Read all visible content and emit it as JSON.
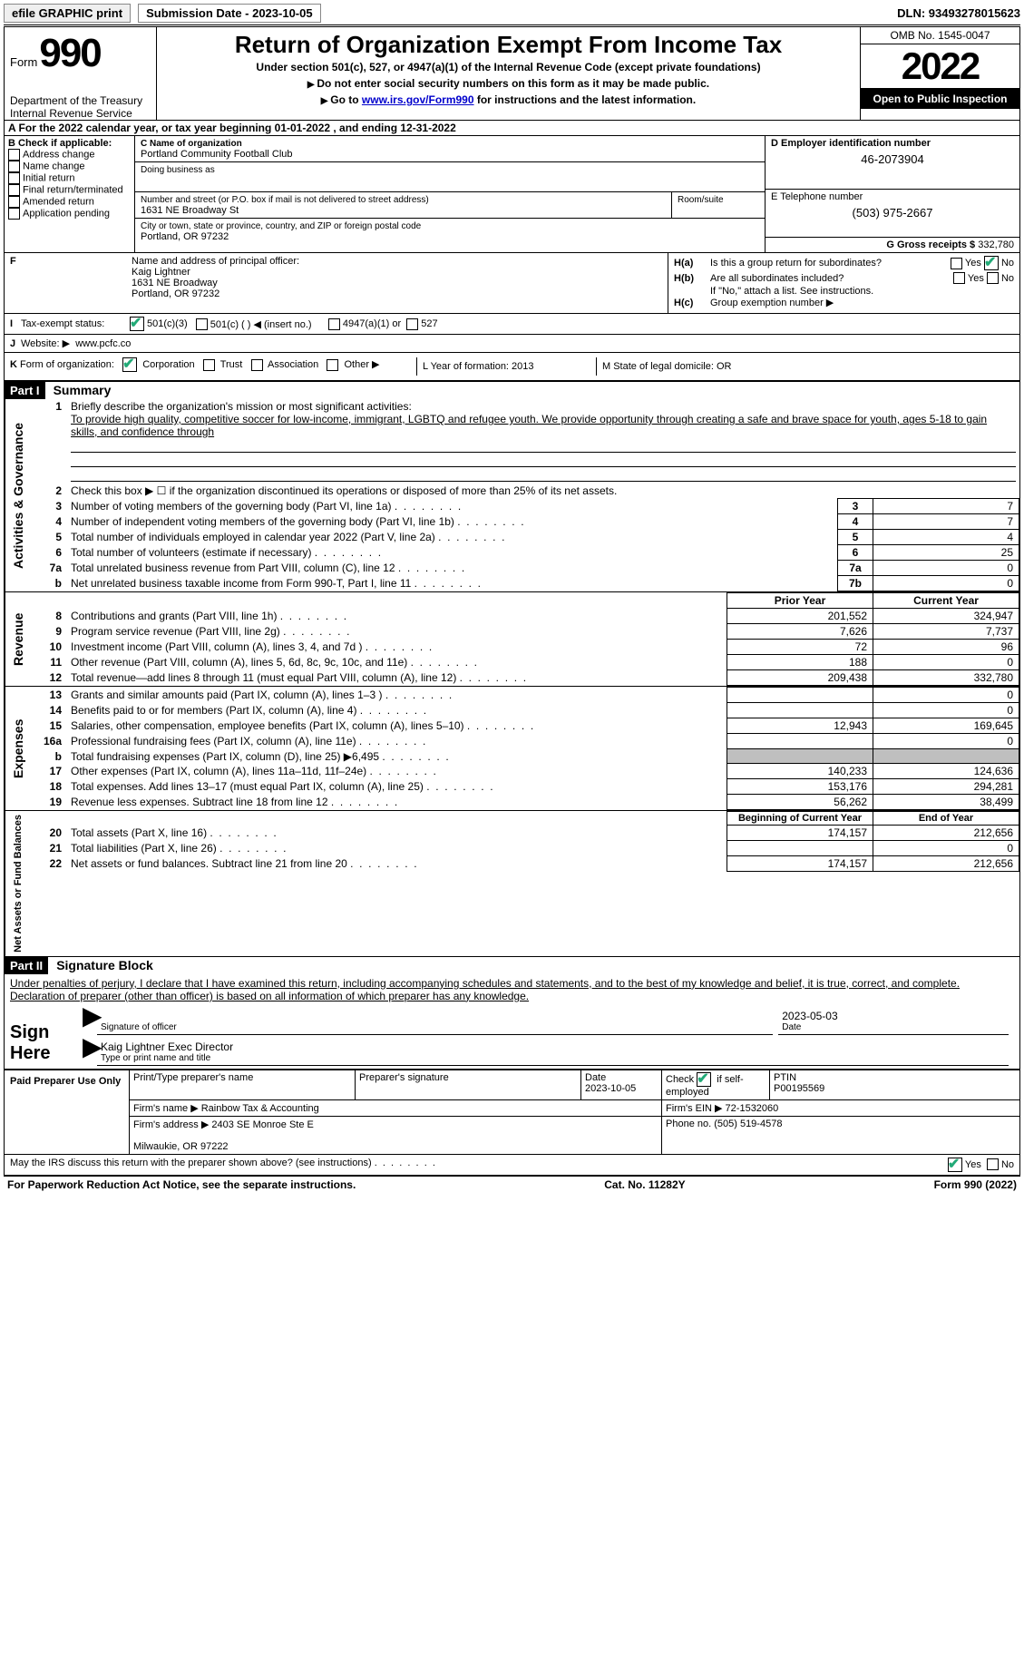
{
  "top": {
    "efile": "efile GRAPHIC print",
    "submission": "Submission Date - 2023-10-05",
    "dln": "DLN: 93493278015623"
  },
  "header": {
    "form_label": "Form",
    "form_num": "990",
    "dept": "Department of the Treasury",
    "irs": "Internal Revenue Service",
    "title": "Return of Organization Exempt From Income Tax",
    "sub1": "Under section 501(c), 527, or 4947(a)(1) of the Internal Revenue Code (except private foundations)",
    "sub2": "Do not enter social security numbers on this form as it may be made public.",
    "sub3_pre": "Go to ",
    "sub3_link": "www.irs.gov/Form990",
    "sub3_post": " for instructions and the latest information.",
    "omb": "OMB No. 1545-0047",
    "year": "2022",
    "open": "Open to Public Inspection"
  },
  "rowA": "A  For the 2022 calendar year, or tax year beginning 01-01-2022    , and ending 12-31-2022",
  "colB": {
    "lbl": "B Check if applicable:",
    "items": [
      "Address change",
      "Name change",
      "Initial return",
      "Final return/terminated",
      "Amended return",
      "Application pending"
    ]
  },
  "colC": {
    "name_lbl": "C Name of organization",
    "name": "Portland Community Football Club",
    "dba_lbl": "Doing business as",
    "street_lbl": "Number and street (or P.O. box if mail is not delivered to street address)",
    "street": "1631 NE Broadway St",
    "room_lbl": "Room/suite",
    "city_lbl": "City or town, state or province, country, and ZIP or foreign postal code",
    "city": "Portland, OR  97232"
  },
  "colD": {
    "lbl": "D Employer identification number",
    "val": "46-2073904"
  },
  "colE": {
    "lbl": "E Telephone number",
    "val": "(503) 975-2667"
  },
  "colG": {
    "lbl": "G Gross receipts $ ",
    "val": "332,780"
  },
  "colF": {
    "lbl": "F",
    "text": "Name and address of principal officer:",
    "name": "Kaig Lightner",
    "addr1": "1631 NE Broadway",
    "addr2": "Portland, OR  97232"
  },
  "colH": {
    "a": "Is this a group return for subordinates?",
    "b": "Are all subordinates included?",
    "note": "If \"No,\" attach a list. See instructions.",
    "c": "Group exemption number ▶"
  },
  "rowI": {
    "lbl": "I",
    "text": "Tax-exempt status:",
    "o1": "501(c)(3)",
    "o2": "501(c) (  ) ◀ (insert no.)",
    "o3": "4947(a)(1) or",
    "o4": "527"
  },
  "rowJ": {
    "lbl": "J",
    "text": "Website: ▶",
    "val": "www.pcfc.co"
  },
  "rowK": {
    "lbl": "K",
    "text": "Form of organization:",
    "o1": "Corporation",
    "o2": "Trust",
    "o3": "Association",
    "o4": "Other ▶"
  },
  "rowL": {
    "text": "L Year of formation: 2013"
  },
  "rowM": {
    "text": "M State of legal domicile: OR"
  },
  "part1": {
    "hdr": "Part I",
    "title": "Summary"
  },
  "summary": {
    "s1": {
      "vtext": "Activities & Governance",
      "l1": "Briefly describe the organization's mission or most significant activities:",
      "l1t": "To provide high quality, competitive soccer for low-income, immigrant, LGBTQ and refugee youth. We provide opportunity through creating a safe and brave space for youth, ages 5-18 to gain skills, and confidence through",
      "l2": "Check this box ▶ ☐ if the organization discontinued its operations or disposed of more than 25% of its net assets.",
      "rows": [
        {
          "n": "3",
          "d": "Number of voting members of the governing body (Part VI, line 1a)",
          "b": "3",
          "v": "7"
        },
        {
          "n": "4",
          "d": "Number of independent voting members of the governing body (Part VI, line 1b)",
          "b": "4",
          "v": "7"
        },
        {
          "n": "5",
          "d": "Total number of individuals employed in calendar year 2022 (Part V, line 2a)",
          "b": "5",
          "v": "4"
        },
        {
          "n": "6",
          "d": "Total number of volunteers (estimate if necessary)",
          "b": "6",
          "v": "25"
        },
        {
          "n": "7a",
          "d": "Total unrelated business revenue from Part VIII, column (C), line 12",
          "b": "7a",
          "v": "0"
        },
        {
          "n": "b",
          "d": "Net unrelated business taxable income from Form 990-T, Part I, line 11",
          "b": "7b",
          "v": "0"
        }
      ]
    },
    "s2": {
      "vtext": "Revenue",
      "h1": "Prior Year",
      "h2": "Current Year",
      "rows": [
        {
          "n": "8",
          "d": "Contributions and grants (Part VIII, line 1h)",
          "p": "201,552",
          "c": "324,947"
        },
        {
          "n": "9",
          "d": "Program service revenue (Part VIII, line 2g)",
          "p": "7,626",
          "c": "7,737"
        },
        {
          "n": "10",
          "d": "Investment income (Part VIII, column (A), lines 3, 4, and 7d )",
          "p": "72",
          "c": "96"
        },
        {
          "n": "11",
          "d": "Other revenue (Part VIII, column (A), lines 5, 6d, 8c, 9c, 10c, and 11e)",
          "p": "188",
          "c": "0"
        },
        {
          "n": "12",
          "d": "Total revenue—add lines 8 through 11 (must equal Part VIII, column (A), line 12)",
          "p": "209,438",
          "c": "332,780"
        }
      ]
    },
    "s3": {
      "vtext": "Expenses",
      "rows": [
        {
          "n": "13",
          "d": "Grants and similar amounts paid (Part IX, column (A), lines 1–3 )",
          "p": "",
          "c": "0"
        },
        {
          "n": "14",
          "d": "Benefits paid to or for members (Part IX, column (A), line 4)",
          "p": "",
          "c": "0"
        },
        {
          "n": "15",
          "d": "Salaries, other compensation, employee benefits (Part IX, column (A), lines 5–10)",
          "p": "12,943",
          "c": "169,645"
        },
        {
          "n": "16a",
          "d": "Professional fundraising fees (Part IX, column (A), line 11e)",
          "p": "",
          "c": "0"
        },
        {
          "n": "b",
          "d": "Total fundraising expenses (Part IX, column (D), line 25) ▶6,495",
          "p": "GREY",
          "c": "GREY"
        },
        {
          "n": "17",
          "d": "Other expenses (Part IX, column (A), lines 11a–11d, 11f–24e)",
          "p": "140,233",
          "c": "124,636"
        },
        {
          "n": "18",
          "d": "Total expenses. Add lines 13–17 (must equal Part IX, column (A), line 25)",
          "p": "153,176",
          "c": "294,281"
        },
        {
          "n": "19",
          "d": "Revenue less expenses. Subtract line 18 from line 12",
          "p": "56,262",
          "c": "38,499"
        }
      ]
    },
    "s4": {
      "vtext": "Net Assets or Fund Balances",
      "h1": "Beginning of Current Year",
      "h2": "End of Year",
      "rows": [
        {
          "n": "20",
          "d": "Total assets (Part X, line 16)",
          "p": "174,157",
          "c": "212,656"
        },
        {
          "n": "21",
          "d": "Total liabilities (Part X, line 26)",
          "p": "",
          "c": "0"
        },
        {
          "n": "22",
          "d": "Net assets or fund balances. Subtract line 21 from line 20",
          "p": "174,157",
          "c": "212,656"
        }
      ]
    }
  },
  "part2": {
    "hdr": "Part II",
    "title": "Signature Block",
    "decl": "Under penalties of perjury, I declare that I have examined this return, including accompanying schedules and statements, and to the best of my knowledge and belief, it is true, correct, and complete. Declaration of preparer (other than officer) is based on all information of which preparer has any knowledge."
  },
  "sign": {
    "lbl": "Sign Here",
    "l1": "Signature of officer",
    "l1d": "2023-05-03",
    "l2v": "Kaig Lightner  Exec Director",
    "l2": "Type or print name and title"
  },
  "prep": {
    "lbl": "Paid Preparer Use Only",
    "r1": {
      "c1": "Print/Type preparer's name",
      "c2": "Preparer's signature",
      "c3l": "Date",
      "c3v": "2023-10-05",
      "c4": "Check ☑ if self-employed",
      "c5l": "PTIN",
      "c5v": "P00195569"
    },
    "r2": {
      "c1": "Firm's name    ▶ Rainbow Tax & Accounting",
      "c2": "Firm's EIN ▶ 72-1532060"
    },
    "r3": {
      "c1": "Firm's address ▶ 2403 SE Monroe Ste E",
      "c1b": "Milwaukie, OR  97222",
      "c2": "Phone no. (505) 519-4578"
    }
  },
  "discuss": "May the IRS discuss this return with the preparer shown above? (see instructions)",
  "footer": {
    "l": "For Paperwork Reduction Act Notice, see the separate instructions.",
    "m": "Cat. No. 11282Y",
    "r": "Form 990 (2022)"
  }
}
